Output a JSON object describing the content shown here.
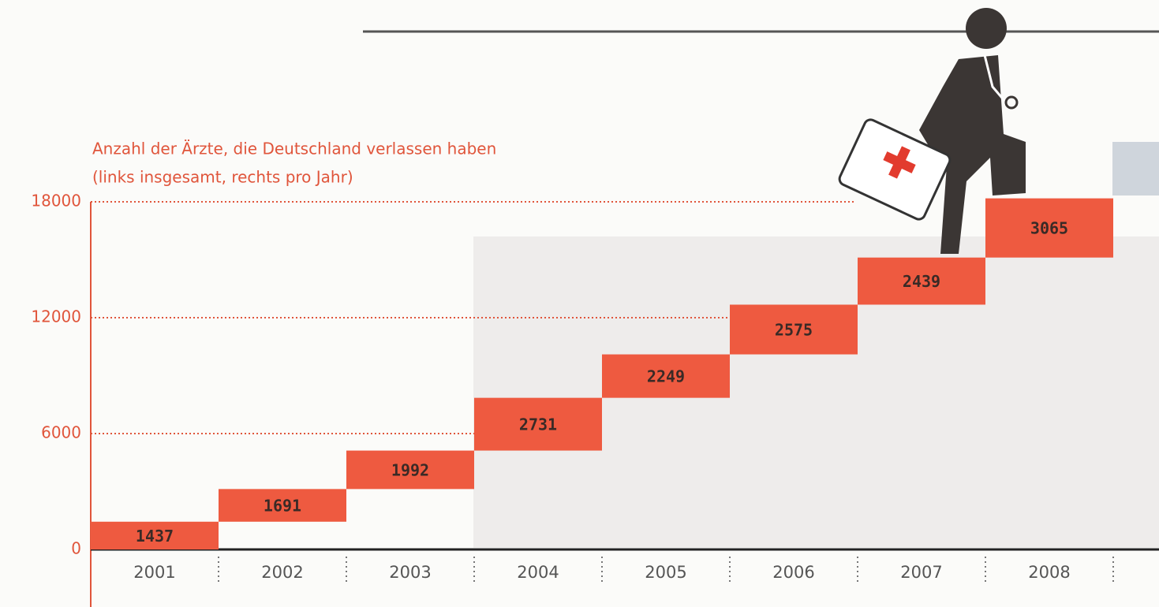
{
  "chart_data": {
    "type": "waterfall",
    "title": "Anzahl der Ärzte, die Deutschland verlassen haben",
    "subtitle": "(links insgesamt, rechts pro Jahr)",
    "categories": [
      "2001",
      "2002",
      "2003",
      "2004",
      "2005",
      "2006",
      "2007",
      "2008"
    ],
    "values": [
      1437,
      1691,
      1992,
      2731,
      2249,
      2575,
      2439,
      3065
    ],
    "color": "#ee5a40",
    "ylim": [
      0,
      18000
    ],
    "yticks": [
      0,
      6000,
      12000,
      18000
    ],
    "grid": true
  }
}
